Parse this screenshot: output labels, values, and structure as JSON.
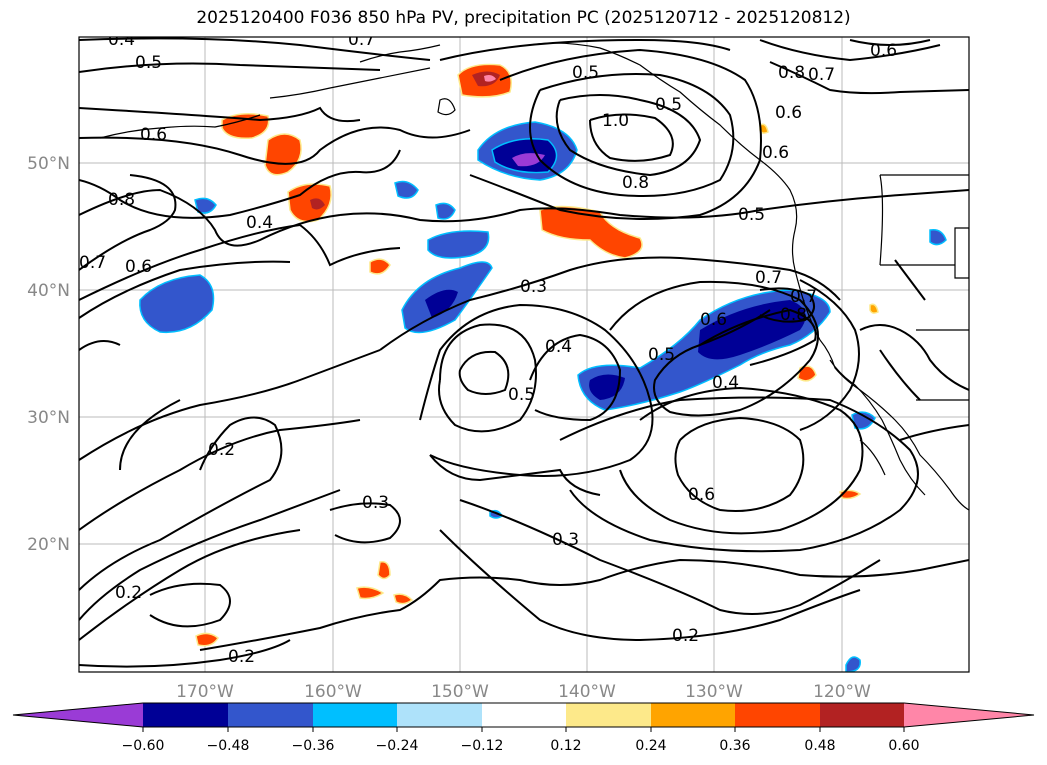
{
  "title": "2025120400 F036 850 hPa PV, precipitation PC (2025120712 - 2025120812)",
  "map": {
    "lon_labels": [
      "170°W",
      "160°W",
      "150°W",
      "140°W",
      "130°W",
      "120°W"
    ],
    "lat_labels": [
      "20°N",
      "30°N",
      "40°N",
      "50°N"
    ],
    "contour_labels": [
      "0.4",
      "0.5",
      "0.7",
      "0.6",
      "0.5",
      "0.8",
      "0.7",
      "0.6",
      "0.5",
      "1.0",
      "0.8",
      "0.6",
      "0.5",
      "0.4",
      "0.7",
      "0.6",
      "0.3",
      "0.4",
      "0.8",
      "0.7",
      "0.6",
      "0.5",
      "0.4",
      "0.5",
      "0.8",
      "0.7",
      "0.6",
      "0.2",
      "0.3",
      "0.3",
      "0.6",
      "0.2",
      "0.2",
      "0.2"
    ]
  },
  "colorbar": {
    "labels": [
      "−0.60",
      "−0.48",
      "−0.36",
      "−0.24",
      "−0.12",
      "0.12",
      "0.24",
      "0.36",
      "0.48",
      "0.60"
    ],
    "colors": [
      "#9a3bd6",
      "#000096",
      "#3356cc",
      "#00bfff",
      "#aee2fa",
      "#ffffff",
      "#fde98a",
      "#ffa400",
      "#ff4500",
      "#b22222",
      "#ff86a8",
      "#ff86a8"
    ]
  }
}
